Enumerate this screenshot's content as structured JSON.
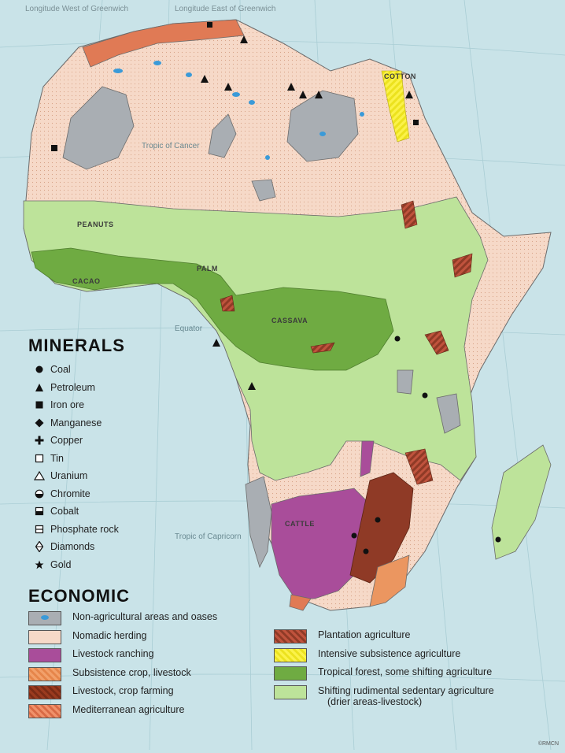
{
  "top_labels": {
    "west": "Longitude West of Greenwich",
    "east": "Longitude East of Greenwich"
  },
  "reference_lines": {
    "cancer": "Tropic of Cancer",
    "equator": "Equator",
    "capricorn": "Tropic of Capricorn"
  },
  "map_labels": {
    "peanuts": "PEANUTS",
    "cacao": "CACAO",
    "palm": "PALM",
    "cassava": "CASSAVA",
    "cotton": "COTTON",
    "cattle": "CATTLE"
  },
  "minerals": {
    "heading": "MINERALS",
    "items": [
      {
        "label": "Coal",
        "icon": "coal-icon"
      },
      {
        "label": "Petroleum",
        "icon": "petroleum-icon"
      },
      {
        "label": "Iron ore",
        "icon": "iron-ore-icon"
      },
      {
        "label": "Manganese",
        "icon": "manganese-icon"
      },
      {
        "label": "Copper",
        "icon": "copper-icon"
      },
      {
        "label": "Tin",
        "icon": "tin-icon"
      },
      {
        "label": "Uranium",
        "icon": "uranium-icon"
      },
      {
        "label": "Chromite",
        "icon": "chromite-icon"
      },
      {
        "label": "Cobalt",
        "icon": "cobalt-icon"
      },
      {
        "label": "Phosphate rock",
        "icon": "phosphate-rock-icon"
      },
      {
        "label": "Diamonds",
        "icon": "diamond-icon"
      },
      {
        "label": "Gold",
        "icon": "gold-icon"
      }
    ]
  },
  "economic": {
    "heading": "ECONOMIC",
    "left": [
      {
        "label": "Non-agricultural areas and oases"
      },
      {
        "label": "Nomadic herding"
      },
      {
        "label": "Livestock ranching"
      },
      {
        "label": "Subsistence crop, livestock"
      },
      {
        "label": "Livestock, crop farming"
      },
      {
        "label": "Mediterranean agriculture"
      }
    ],
    "right": [
      {
        "label": "Plantation agriculture"
      },
      {
        "label": "Intensive subsistence agriculture"
      },
      {
        "label": "Tropical forest, some shifting agriculture"
      },
      {
        "label": "Shifting rudimental sedentary agriculture",
        "sub": "(drier areas-livestock)"
      }
    ]
  },
  "colors": {
    "ocean": "#c9e3e8",
    "nomadic": "#f6d9c8",
    "shifting": "#bde39a",
    "tropical": "#6fab42",
    "nonag": "#a9aeb3",
    "ranching": "#a94d9a",
    "plantation": "#b9482f",
    "intensive": "#fbf24a",
    "oasis": "#3a9ad8"
  },
  "credit": "©RMCN"
}
